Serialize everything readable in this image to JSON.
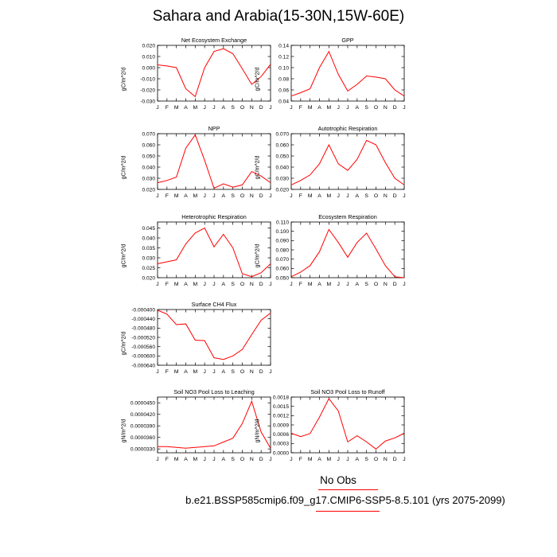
{
  "page": {
    "title": "Sahara and Arabia(15-30N,15W-60E)",
    "legend_label": "No Obs",
    "case_label": "b.e21.BSSP585cmip6.f09_g17.CMIP6-SSP5-8.5.101 (yrs 2075-2099)",
    "line_color": "#ff0000"
  },
  "months": [
    "J",
    "F",
    "M",
    "A",
    "M",
    "J",
    "J",
    "A",
    "S",
    "O",
    "N",
    "D",
    "J"
  ],
  "chart_data": [
    {
      "id": "nee",
      "type": "line",
      "title": "Net Ecosystem Exchange",
      "ylabel": "gC/m^2/d",
      "ylim": [
        -0.03,
        0.02
      ],
      "yticks": [
        "0.020",
        "0.010",
        "0.000",
        "-0.010",
        "-0.020",
        "-0.030"
      ],
      "ytick_values": [
        0.02,
        0.01,
        0.0,
        -0.01,
        -0.02,
        -0.03
      ],
      "values": [
        0.0025,
        0.0015,
        0.0,
        -0.019,
        -0.026,
        0.0,
        0.0145,
        0.017,
        0.0125,
        -0.001,
        -0.015,
        -0.008,
        0.003
      ]
    },
    {
      "id": "gpp",
      "type": "line",
      "title": "GPP",
      "ylabel": "gC/m^2/d",
      "ylim": [
        0.04,
        0.14
      ],
      "yticks": [
        "0.14",
        "0.12",
        "0.10",
        "0.08",
        "0.06",
        "0.04"
      ],
      "ytick_values": [
        0.14,
        0.12,
        0.1,
        0.08,
        0.06,
        0.04
      ],
      "values": [
        0.049,
        0.055,
        0.062,
        0.1,
        0.129,
        0.088,
        0.058,
        0.07,
        0.085,
        0.083,
        0.08,
        0.06,
        0.049
      ]
    },
    {
      "id": "npp",
      "type": "line",
      "title": "NPP",
      "ylabel": "gC/m^2/d",
      "ylim": [
        0.02,
        0.07
      ],
      "yticks": [
        "0.070",
        "0.060",
        "0.050",
        "0.040",
        "0.030",
        "0.020"
      ],
      "ytick_values": [
        0.07,
        0.06,
        0.05,
        0.04,
        0.03,
        0.02
      ],
      "values": [
        0.026,
        0.028,
        0.031,
        0.057,
        0.069,
        0.046,
        0.021,
        0.025,
        0.022,
        0.024,
        0.036,
        0.032,
        0.026
      ]
    },
    {
      "id": "ar",
      "type": "line",
      "title": "Autotrophic Respiration",
      "ylabel": "gC/m^2/d",
      "ylim": [
        0.02,
        0.07
      ],
      "yticks": [
        "0.070",
        "0.060",
        "0.050",
        "0.040",
        "0.030",
        "0.020"
      ],
      "ytick_values": [
        0.07,
        0.06,
        0.05,
        0.04,
        0.03,
        0.02
      ],
      "values": [
        0.024,
        0.028,
        0.033,
        0.043,
        0.06,
        0.043,
        0.037,
        0.047,
        0.064,
        0.06,
        0.044,
        0.03,
        0.024
      ]
    },
    {
      "id": "hr",
      "type": "line",
      "title": "Heterotrophic Respiration",
      "ylabel": "gC/m^2/d",
      "ylim": [
        0.02,
        0.048
      ],
      "yticks": [
        "0.045",
        "0.040",
        "0.035",
        "0.030",
        "0.025",
        "0.020"
      ],
      "ytick_values": [
        0.045,
        0.04,
        0.035,
        0.03,
        0.025,
        0.02
      ],
      "values": [
        0.027,
        0.028,
        0.029,
        0.037,
        0.0425,
        0.045,
        0.0355,
        0.0418,
        0.035,
        0.022,
        0.0205,
        0.0225,
        0.027
      ]
    },
    {
      "id": "er",
      "type": "line",
      "title": "Ecosystem Respiration",
      "ylabel": "gC/m^2/d",
      "ylim": [
        0.05,
        0.11
      ],
      "yticks": [
        "0.110",
        "0.100",
        "0.090",
        "0.080",
        "0.070",
        "0.060",
        "0.050"
      ],
      "ytick_values": [
        0.11,
        0.1,
        0.09,
        0.08,
        0.07,
        0.06,
        0.05
      ],
      "values": [
        0.051,
        0.056,
        0.063,
        0.078,
        0.102,
        0.088,
        0.072,
        0.088,
        0.098,
        0.081,
        0.063,
        0.051,
        0.05
      ]
    },
    {
      "id": "ch4",
      "type": "line",
      "title": "Surface CH4 Flux",
      "ylabel": "gC/m^2/d",
      "ylim": [
        -0.00064,
        -0.0004
      ],
      "yticks": [
        "-0.000400",
        "-0.000440",
        "-0.000480",
        "-0.000520",
        "-0.000560",
        "-0.000600",
        "-0.000640"
      ],
      "ytick_values": [
        -0.0004,
        -0.00044,
        -0.00048,
        -0.00052,
        -0.00056,
        -0.0006,
        -0.00064
      ],
      "values": [
        -0.000403,
        -0.00042,
        -0.000465,
        -0.000462,
        -0.000532,
        -0.000534,
        -0.000608,
        -0.000615,
        -0.0006,
        -0.000572,
        -0.000508,
        -0.000446,
        -0.000415
      ]
    },
    {
      "id": "leach",
      "type": "line",
      "title": "Soil NO3 Pool Loss to Leaching",
      "ylabel": "gN/m^2/d",
      "ylim": [
        3.2e-05,
        4.65e-05
      ],
      "yticks": [
        "0.0000450",
        "0.0000420",
        "0.0000390",
        "0.0000360",
        "0.0000330"
      ],
      "ytick_values": [
        4.5e-05,
        4.2e-05,
        3.9e-05,
        3.6e-05,
        3.3e-05
      ],
      "values": [
        3.36e-05,
        3.36e-05,
        3.34e-05,
        3.32e-05,
        3.34e-05,
        3.36e-05,
        3.38e-05,
        3.48e-05,
        3.58e-05,
        3.96e-05,
        4.54e-05,
        3.74e-05,
        3.32e-05
      ]
    },
    {
      "id": "runoff",
      "type": "line",
      "title": "Soil NO3 Pool Loss to Runoff",
      "ylabel": "gN/m^2/d",
      "ylim": [
        0.0,
        0.0018
      ],
      "yticks": [
        "0.0018",
        "0.0015",
        "0.0012",
        "0.0009",
        "0.0006",
        "0.0003",
        "0.0000"
      ],
      "ytick_values": [
        0.0018,
        0.0015,
        0.0012,
        0.0009,
        0.0006,
        0.0003,
        0.0
      ],
      "values": [
        0.00063,
        0.00052,
        0.00062,
        0.00115,
        0.00175,
        0.00135,
        0.00035,
        0.00055,
        0.00035,
        0.00012,
        0.00038,
        0.00048,
        0.00063
      ]
    }
  ]
}
